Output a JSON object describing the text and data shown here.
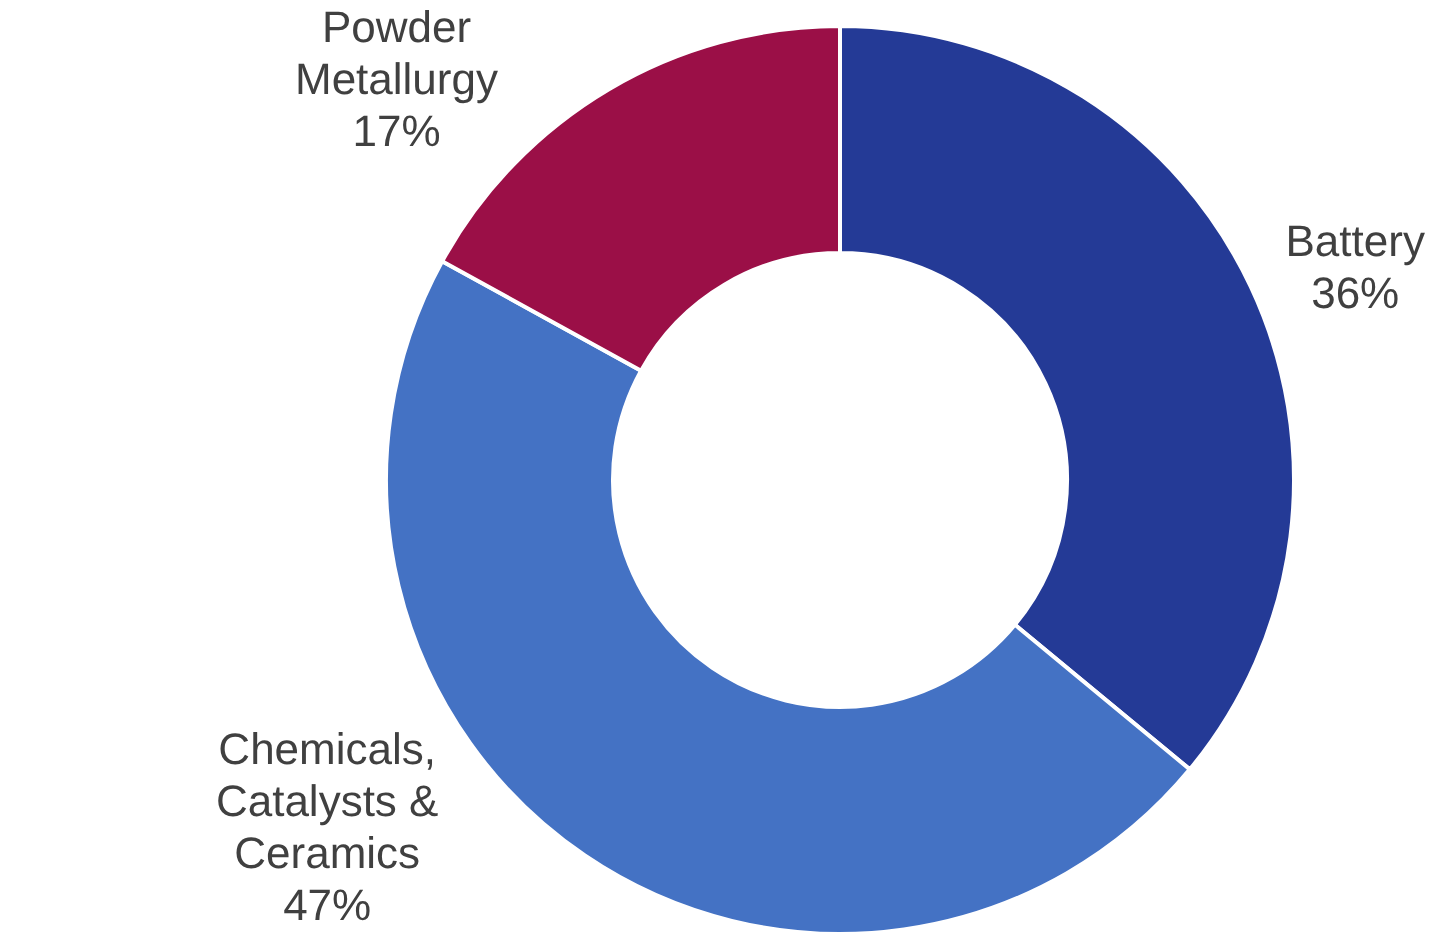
{
  "chart_data": {
    "type": "donut",
    "categories": [
      "Battery",
      "Chemicals, Catalysts & Ceramics",
      "Powder Metallurgy"
    ],
    "values": [
      36,
      47,
      17
    ],
    "value_labels": [
      "36%",
      "47%",
      "17%"
    ],
    "colors": [
      "#243a96",
      "#4472c4",
      "#9b0f47"
    ],
    "legend": false
  }
}
